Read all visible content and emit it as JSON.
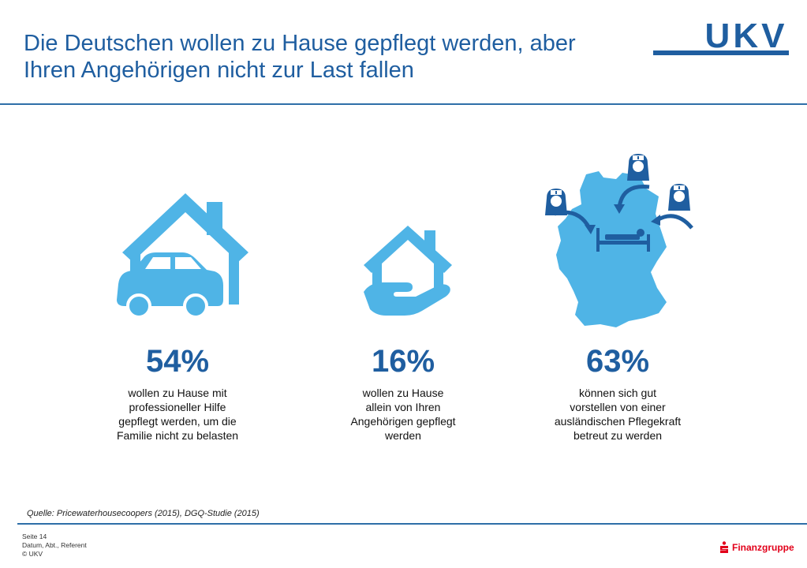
{
  "header": {
    "title_line1": "Die Deutschen wollen zu Hause gepflegt werden, aber",
    "title_line2": "Ihren Angehörigen nicht zur Last fallen",
    "logo_text": "UKV"
  },
  "colors": {
    "title": "#1f5ea0",
    "icon": "#4fb4e6",
    "rule": "#2e6fa8",
    "sparkasse": "#e2001a"
  },
  "stats": [
    {
      "icon": "house-car-icon",
      "percent": "54%",
      "lines": [
        "wollen zu Hause mit",
        "professioneller Hilfe",
        "gepflegt werden, um die",
        "Familie nicht zu belasten"
      ]
    },
    {
      "icon": "house-hand-icon",
      "percent": "16%",
      "lines": [
        "wollen zu Hause",
        "allein von Ihren",
        "Angehörigen gepflegt",
        "werden"
      ]
    },
    {
      "icon": "germany-caregivers-icon",
      "percent": "63%",
      "lines": [
        "können sich gut",
        "vorstellen von einer",
        "ausländischen Pflegekraft",
        "betreut zu werden"
      ]
    }
  ],
  "source": "Quelle: Pricewaterhousecoopers (2015), DGQ-Studie (2015)",
  "footer": {
    "page": "Seite 14",
    "meta": "Datum, Abt., Referent",
    "copyright": "© UKV"
  },
  "partner": {
    "name": "Finanzgruppe"
  }
}
